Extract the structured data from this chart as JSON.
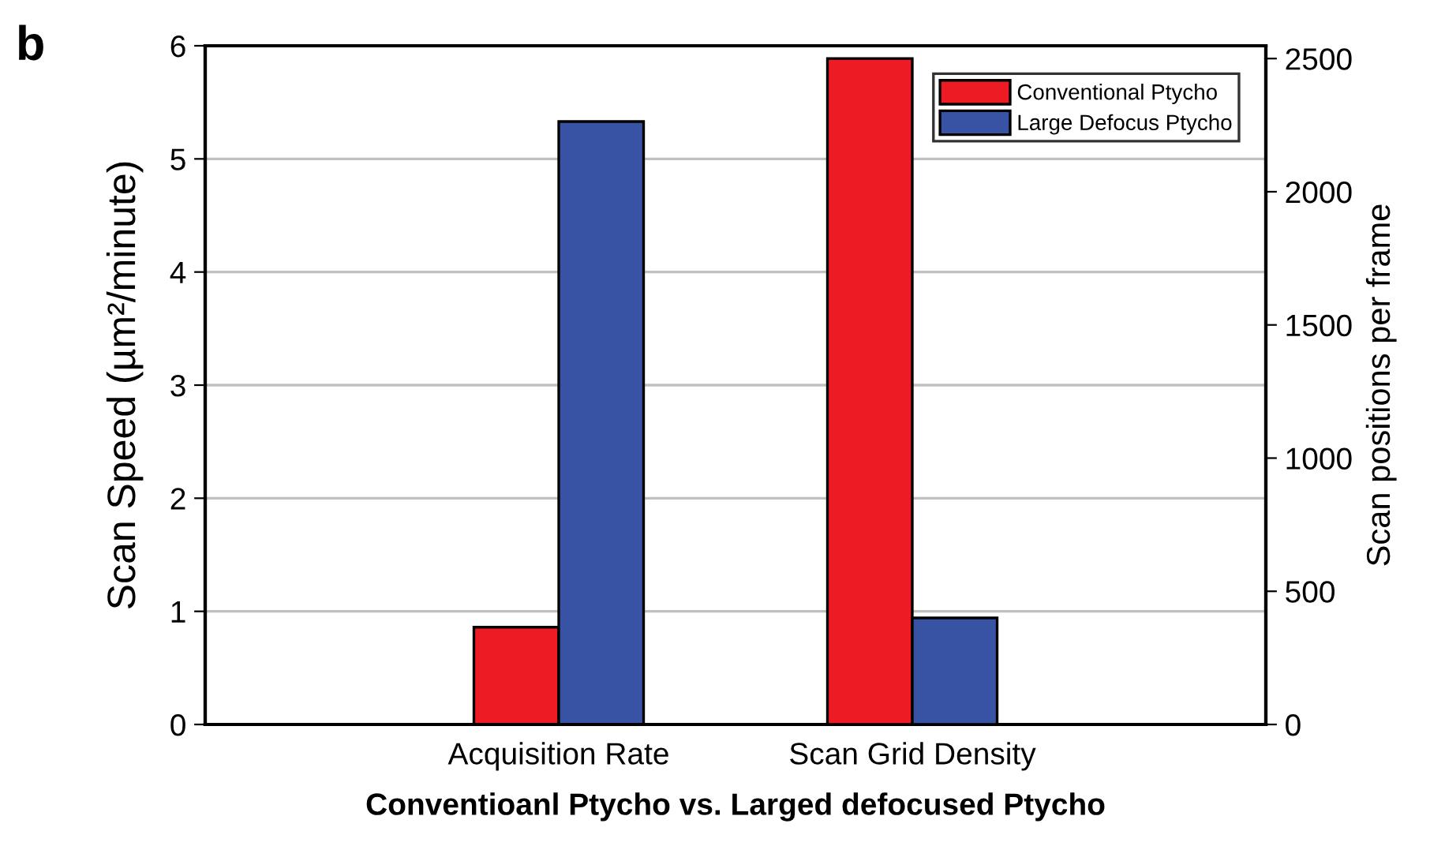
{
  "chart_data": {
    "type": "bar",
    "xlabel": "Conventioanl Ptycho vs. Larged defocused Ptycho",
    "ylabel": "Scan Speed (µm²/minute)",
    "y2label": "Scan positions per frame",
    "annotations": [
      "b"
    ],
    "categories": [
      null,
      "Acquisition Rate",
      "Scan Grid Density",
      null
    ],
    "series": [
      {
        "name": "Conventional Ptycho",
        "color": "#ed1c24",
        "values": [
          null,
          0.86,
          null,
          null
        ]
      },
      {
        "name": "Large Defocus Ptycho",
        "color": "#3953a4",
        "values": [
          null,
          5.33,
          null,
          null
        ]
      },
      {
        "color": "#ed1c24",
        "values": [
          null,
          null,
          2500,
          null
        ],
        "axis": "y2"
      },
      {
        "color": "#3953a4",
        "values": [
          null,
          null,
          400,
          null
        ],
        "axis": "y2"
      }
    ],
    "ylim": [
      0,
      6
    ],
    "yticks": [
      0,
      1,
      2,
      3,
      4,
      5,
      6
    ],
    "y2lim": [
      0,
      2548
    ],
    "y2ticks": [
      0,
      500,
      1000,
      1500,
      2000,
      2500
    ],
    "grid": "y",
    "legend": "top right"
  }
}
